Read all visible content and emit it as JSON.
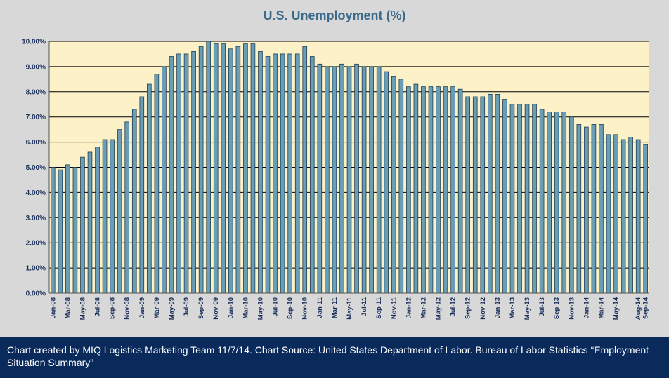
{
  "footer": {
    "caption": "Chart created by MIQ Logistics Marketing Team 11/7/14.  Chart Source: United States Department of Labor. Bureau of Labor Statistics “Employment Situation Summary”"
  },
  "colors": {
    "plot_background": "#fdf1c8",
    "bar_fill": "#6a9eb6",
    "bar_stroke": "#1f3f55",
    "title": "#3b6a8a",
    "tick_text": "#1a2f5a",
    "footer_background": "#0a2a5c"
  },
  "chart_data": {
    "type": "bar",
    "title": "U.S. Unemployment (%)",
    "xlabel": "",
    "ylabel": "",
    "ylim": [
      0,
      10
    ],
    "y_ticks": [
      0,
      1,
      2,
      3,
      4,
      5,
      6,
      7,
      8,
      9,
      10
    ],
    "y_tick_labels": [
      "0.00%",
      "1.00%",
      "2.00%",
      "3.00%",
      "4.00%",
      "5.00%",
      "6.00%",
      "7.00%",
      "8.00%",
      "9.00%",
      "10.00%"
    ],
    "grid": true,
    "legend": "none",
    "categories": [
      "Jan-08",
      "Feb-08",
      "Mar-08",
      "Apr-08",
      "May-08",
      "Jun-08",
      "Jul-08",
      "Aug-08",
      "Sep-08",
      "Oct-08",
      "Nov-08",
      "Dec-08",
      "Jan-09",
      "Feb-09",
      "Mar-09",
      "Apr-09",
      "May-09",
      "Jun-09",
      "Jul-09",
      "Aug-09",
      "Sep-09",
      "Oct-09",
      "Nov-09",
      "Dec-09",
      "Jan-10",
      "Feb-10",
      "Mar-10",
      "Apr-10",
      "May-10",
      "Jun-10",
      "Jul-10",
      "Aug-10",
      "Sep-10",
      "Oct-10",
      "Nov-10",
      "Dec-10",
      "Jan-11",
      "Feb-11",
      "Mar-11",
      "Apr-11",
      "May-11",
      "Jun-11",
      "Jul-11",
      "Aug-11",
      "Sep-11",
      "Oct-11",
      "Nov-11",
      "Dec-11",
      "Jan-12",
      "Feb-12",
      "Mar-12",
      "Apr-12",
      "May-12",
      "Jun-12",
      "Jul-12",
      "Aug-12",
      "Sep-12",
      "Oct-12",
      "Nov-12",
      "Dec-12",
      "Jan-13",
      "Feb-13",
      "Mar-13",
      "Apr-13",
      "May-13",
      "Jun-13",
      "Jul-13",
      "Aug-13",
      "Sep-13",
      "Oct-13",
      "Nov-13",
      "Dec-13",
      "Jan-14",
      "Feb-14",
      "Mar-14",
      "Apr-14",
      "May-14",
      "Jun-14",
      "Jul-14",
      "Aug-14",
      "Sep-14"
    ],
    "tick_labels": [
      "Jan-08",
      "",
      "Mar-08",
      "",
      "May-08",
      "",
      "Jul-08",
      "",
      "Sep-08",
      "",
      "Nov-08",
      "",
      "Jan-09",
      "",
      "Mar-09",
      "",
      "May-09",
      "",
      "Jul-09",
      "",
      "Sep-09",
      "",
      "Nov-09",
      "",
      "Jan-10",
      "",
      "Mar-10",
      "",
      "May-10",
      "",
      "Jul-10",
      "",
      "Sep-10",
      "",
      "Nov-10",
      "",
      "Jan-11",
      "",
      "Mar-11",
      "",
      "May-11",
      "",
      "Jul-11",
      "",
      "Sep-11",
      "",
      "Nov-11",
      "",
      "Jan-12",
      "",
      "Mar-12",
      "",
      "May-12",
      "",
      "Jul-12",
      "",
      "Sep-12",
      "",
      "Nov-12",
      "",
      "Jan-13",
      "",
      "Mar-13",
      "",
      "May-13",
      "",
      "Jul-13",
      "",
      "Sep-13",
      "",
      "Nov-13",
      "",
      "Jan-14",
      "",
      "Mar-14",
      "",
      "May-14",
      "",
      "",
      "Aug-14",
      "Sep-14"
    ],
    "values": [
      5.0,
      4.9,
      5.1,
      5.0,
      5.4,
      5.6,
      5.8,
      6.1,
      6.1,
      6.5,
      6.8,
      7.3,
      7.8,
      8.3,
      8.7,
      9.0,
      9.4,
      9.5,
      9.5,
      9.6,
      9.8,
      10.0,
      9.9,
      9.9,
      9.7,
      9.8,
      9.9,
      9.9,
      9.6,
      9.4,
      9.5,
      9.5,
      9.5,
      9.5,
      9.8,
      9.4,
      9.1,
      9.0,
      9.0,
      9.1,
      9.0,
      9.1,
      9.0,
      9.0,
      9.0,
      8.8,
      8.6,
      8.5,
      8.2,
      8.3,
      8.2,
      8.2,
      8.2,
      8.2,
      8.2,
      8.1,
      7.8,
      7.8,
      7.8,
      7.9,
      7.9,
      7.7,
      7.5,
      7.5,
      7.5,
      7.5,
      7.3,
      7.2,
      7.2,
      7.2,
      7.0,
      6.7,
      6.6,
      6.7,
      6.7,
      6.3,
      6.3,
      6.1,
      6.2,
      6.1,
      5.9
    ]
  }
}
